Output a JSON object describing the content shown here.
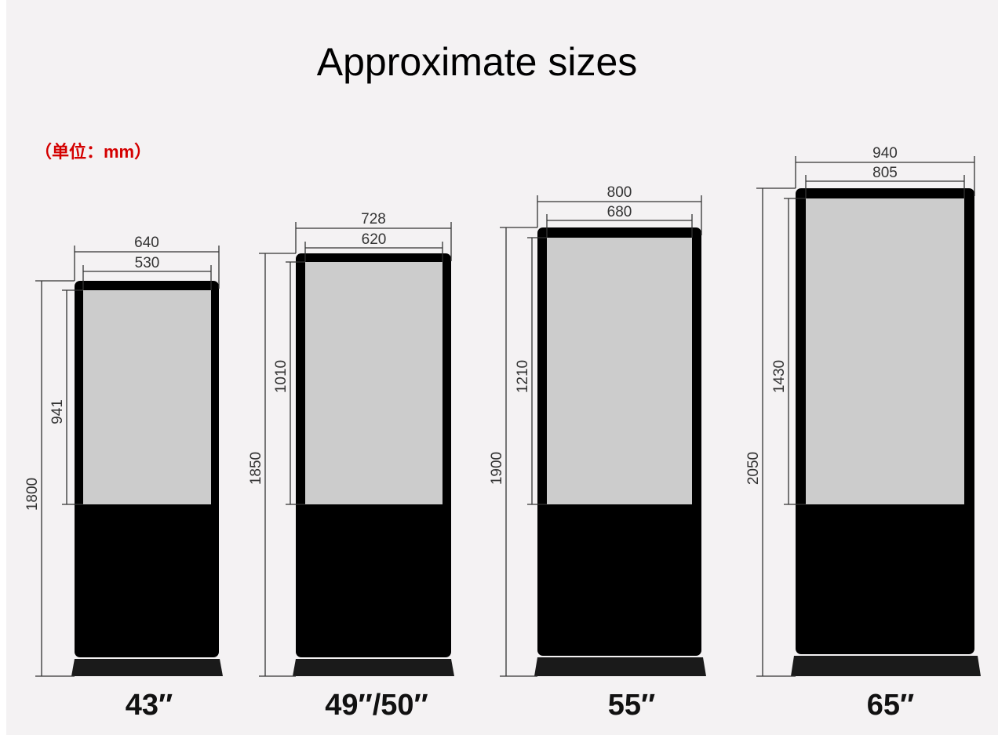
{
  "title": "Approximate sizes",
  "unit_label": "（单位：mm）",
  "colors": {
    "unit": "#d40000",
    "frame": "#000000",
    "screen": "#cccccc",
    "background": "#f4f2f3"
  },
  "models": [
    {
      "size": "43″",
      "overall_width": "640",
      "screen_width": "530",
      "overall_height": "1800",
      "screen_height": "941"
    },
    {
      "size": "49″/50″",
      "overall_width": "728",
      "screen_width": "620",
      "overall_height": "1850",
      "screen_height": "1010"
    },
    {
      "size": "55″",
      "overall_width": "800",
      "screen_width": "680",
      "overall_height": "1900",
      "screen_height": "1210"
    },
    {
      "size": "65″",
      "overall_width": "940",
      "screen_width": "805",
      "overall_height": "2050",
      "screen_height": "1430"
    }
  ]
}
